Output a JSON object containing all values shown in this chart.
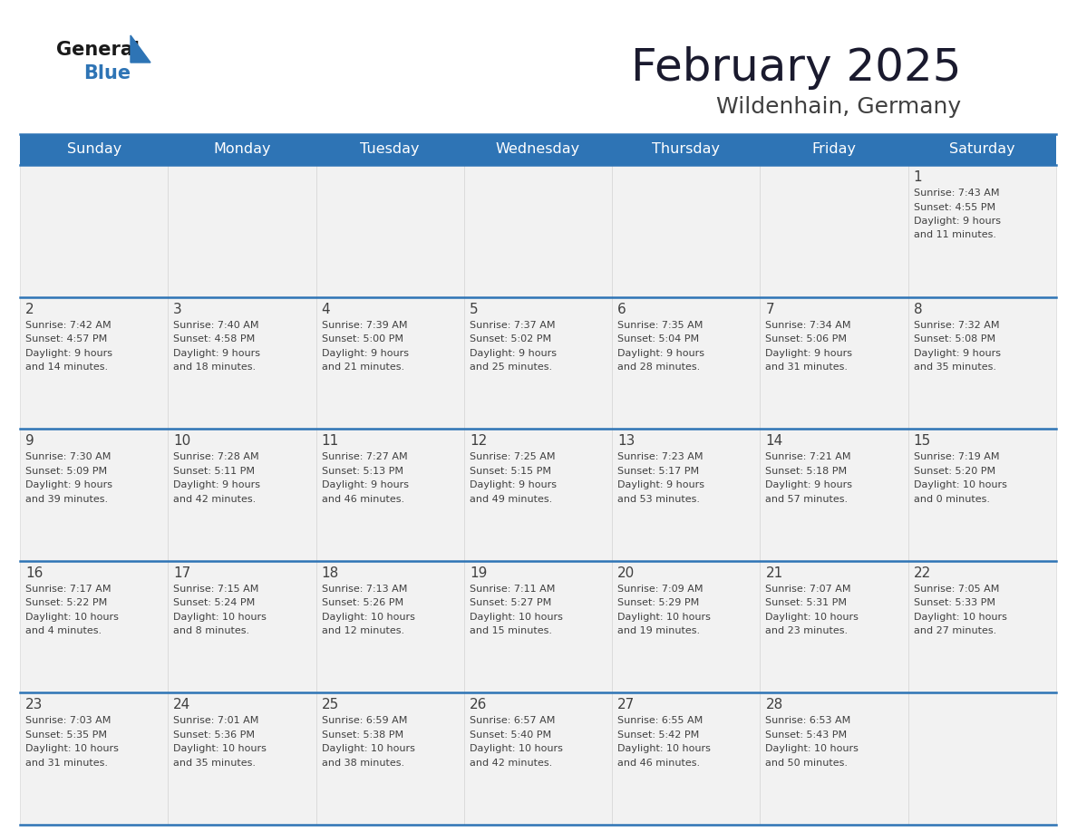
{
  "title": "February 2025",
  "subtitle": "Wildenhain, Germany",
  "header_bg": "#2E74B5",
  "header_text_color": "#FFFFFF",
  "cell_bg_light": "#F2F2F2",
  "text_color": "#404040",
  "line_color": "#2E74B5",
  "days_of_week": [
    "Sunday",
    "Monday",
    "Tuesday",
    "Wednesday",
    "Thursday",
    "Friday",
    "Saturday"
  ],
  "weeks": [
    [
      {
        "day": null,
        "sunrise": null,
        "sunset": null,
        "daylight": null
      },
      {
        "day": null,
        "sunrise": null,
        "sunset": null,
        "daylight": null
      },
      {
        "day": null,
        "sunrise": null,
        "sunset": null,
        "daylight": null
      },
      {
        "day": null,
        "sunrise": null,
        "sunset": null,
        "daylight": null
      },
      {
        "day": null,
        "sunrise": null,
        "sunset": null,
        "daylight": null
      },
      {
        "day": null,
        "sunrise": null,
        "sunset": null,
        "daylight": null
      },
      {
        "day": 1,
        "sunrise": "7:43 AM",
        "sunset": "4:55 PM",
        "daylight": "9 hours\nand 11 minutes."
      }
    ],
    [
      {
        "day": 2,
        "sunrise": "7:42 AM",
        "sunset": "4:57 PM",
        "daylight": "9 hours\nand 14 minutes."
      },
      {
        "day": 3,
        "sunrise": "7:40 AM",
        "sunset": "4:58 PM",
        "daylight": "9 hours\nand 18 minutes."
      },
      {
        "day": 4,
        "sunrise": "7:39 AM",
        "sunset": "5:00 PM",
        "daylight": "9 hours\nand 21 minutes."
      },
      {
        "day": 5,
        "sunrise": "7:37 AM",
        "sunset": "5:02 PM",
        "daylight": "9 hours\nand 25 minutes."
      },
      {
        "day": 6,
        "sunrise": "7:35 AM",
        "sunset": "5:04 PM",
        "daylight": "9 hours\nand 28 minutes."
      },
      {
        "day": 7,
        "sunrise": "7:34 AM",
        "sunset": "5:06 PM",
        "daylight": "9 hours\nand 31 minutes."
      },
      {
        "day": 8,
        "sunrise": "7:32 AM",
        "sunset": "5:08 PM",
        "daylight": "9 hours\nand 35 minutes."
      }
    ],
    [
      {
        "day": 9,
        "sunrise": "7:30 AM",
        "sunset": "5:09 PM",
        "daylight": "9 hours\nand 39 minutes."
      },
      {
        "day": 10,
        "sunrise": "7:28 AM",
        "sunset": "5:11 PM",
        "daylight": "9 hours\nand 42 minutes."
      },
      {
        "day": 11,
        "sunrise": "7:27 AM",
        "sunset": "5:13 PM",
        "daylight": "9 hours\nand 46 minutes."
      },
      {
        "day": 12,
        "sunrise": "7:25 AM",
        "sunset": "5:15 PM",
        "daylight": "9 hours\nand 49 minutes."
      },
      {
        "day": 13,
        "sunrise": "7:23 AM",
        "sunset": "5:17 PM",
        "daylight": "9 hours\nand 53 minutes."
      },
      {
        "day": 14,
        "sunrise": "7:21 AM",
        "sunset": "5:18 PM",
        "daylight": "9 hours\nand 57 minutes."
      },
      {
        "day": 15,
        "sunrise": "7:19 AM",
        "sunset": "5:20 PM",
        "daylight": "10 hours\nand 0 minutes."
      }
    ],
    [
      {
        "day": 16,
        "sunrise": "7:17 AM",
        "sunset": "5:22 PM",
        "daylight": "10 hours\nand 4 minutes."
      },
      {
        "day": 17,
        "sunrise": "7:15 AM",
        "sunset": "5:24 PM",
        "daylight": "10 hours\nand 8 minutes."
      },
      {
        "day": 18,
        "sunrise": "7:13 AM",
        "sunset": "5:26 PM",
        "daylight": "10 hours\nand 12 minutes."
      },
      {
        "day": 19,
        "sunrise": "7:11 AM",
        "sunset": "5:27 PM",
        "daylight": "10 hours\nand 15 minutes."
      },
      {
        "day": 20,
        "sunrise": "7:09 AM",
        "sunset": "5:29 PM",
        "daylight": "10 hours\nand 19 minutes."
      },
      {
        "day": 21,
        "sunrise": "7:07 AM",
        "sunset": "5:31 PM",
        "daylight": "10 hours\nand 23 minutes."
      },
      {
        "day": 22,
        "sunrise": "7:05 AM",
        "sunset": "5:33 PM",
        "daylight": "10 hours\nand 27 minutes."
      }
    ],
    [
      {
        "day": 23,
        "sunrise": "7:03 AM",
        "sunset": "5:35 PM",
        "daylight": "10 hours\nand 31 minutes."
      },
      {
        "day": 24,
        "sunrise": "7:01 AM",
        "sunset": "5:36 PM",
        "daylight": "10 hours\nand 35 minutes."
      },
      {
        "day": 25,
        "sunrise": "6:59 AM",
        "sunset": "5:38 PM",
        "daylight": "10 hours\nand 38 minutes."
      },
      {
        "day": 26,
        "sunrise": "6:57 AM",
        "sunset": "5:40 PM",
        "daylight": "10 hours\nand 42 minutes."
      },
      {
        "day": 27,
        "sunrise": "6:55 AM",
        "sunset": "5:42 PM",
        "daylight": "10 hours\nand 46 minutes."
      },
      {
        "day": 28,
        "sunrise": "6:53 AM",
        "sunset": "5:43 PM",
        "daylight": "10 hours\nand 50 minutes."
      },
      {
        "day": null,
        "sunrise": null,
        "sunset": null,
        "daylight": null
      }
    ]
  ],
  "logo_general_color": "#1a1a1a",
  "logo_blue_color": "#2E74B5",
  "logo_triangle_color": "#2E74B5",
  "title_color": "#1a1a2e",
  "subtitle_color": "#404040"
}
